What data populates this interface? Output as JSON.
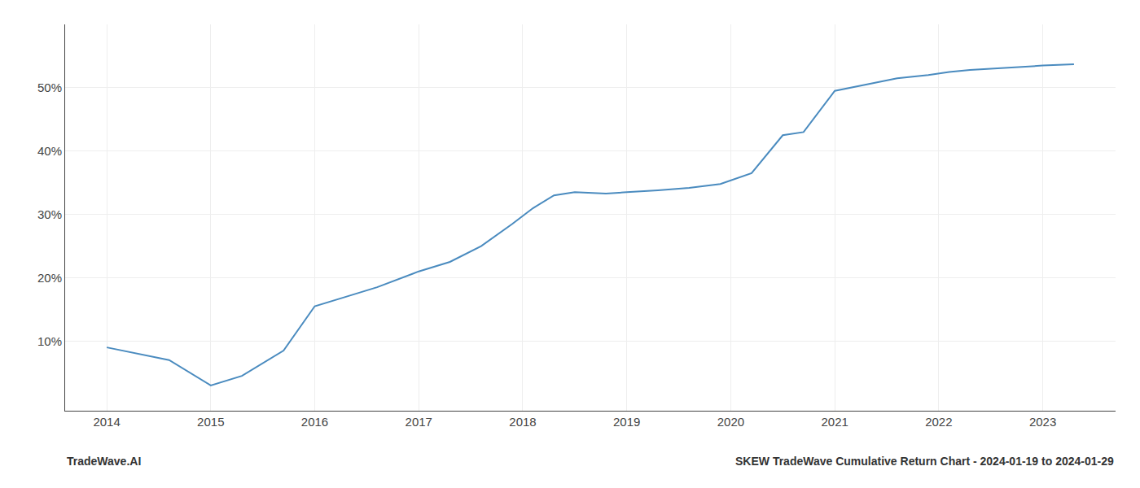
{
  "chart_data": {
    "type": "line",
    "x": [
      2014.0,
      2014.6,
      2015.0,
      2015.3,
      2015.7,
      2016.0,
      2016.3,
      2016.6,
      2017.0,
      2017.3,
      2017.6,
      2017.9,
      2018.1,
      2018.3,
      2018.5,
      2018.8,
      2019.0,
      2019.3,
      2019.6,
      2019.9,
      2020.2,
      2020.5,
      2020.7,
      2021.0,
      2021.3,
      2021.6,
      2021.9,
      2022.1,
      2022.3,
      2022.5,
      2022.7,
      2023.0,
      2023.3
    ],
    "values": [
      9.0,
      7.0,
      3.0,
      4.5,
      8.5,
      15.5,
      17.0,
      18.5,
      21.0,
      22.5,
      25.0,
      28.5,
      31.0,
      33.0,
      33.5,
      33.3,
      33.5,
      33.8,
      34.2,
      34.8,
      36.5,
      42.5,
      43.0,
      49.5,
      50.5,
      51.5,
      52.0,
      52.5,
      52.8,
      53.0,
      53.2,
      53.5,
      53.7
    ],
    "color": "#4a8bbf",
    "xlim": [
      2013.6,
      2023.7
    ],
    "ylim": [
      -1,
      60
    ],
    "xticks": [
      2014,
      2015,
      2016,
      2017,
      2018,
      2019,
      2020,
      2021,
      2022,
      2023
    ],
    "yticks": [
      {
        "value": 10,
        "label": "10%"
      },
      {
        "value": 20,
        "label": "20%"
      },
      {
        "value": 30,
        "label": "30%"
      },
      {
        "value": 40,
        "label": "40%"
      },
      {
        "value": 50,
        "label": "50%"
      }
    ],
    "grid": true,
    "annotations": [
      "TradeWave.AI",
      "SKEW TradeWave Cumulative Return Chart - 2024-01-19 to 2024-01-29"
    ]
  }
}
